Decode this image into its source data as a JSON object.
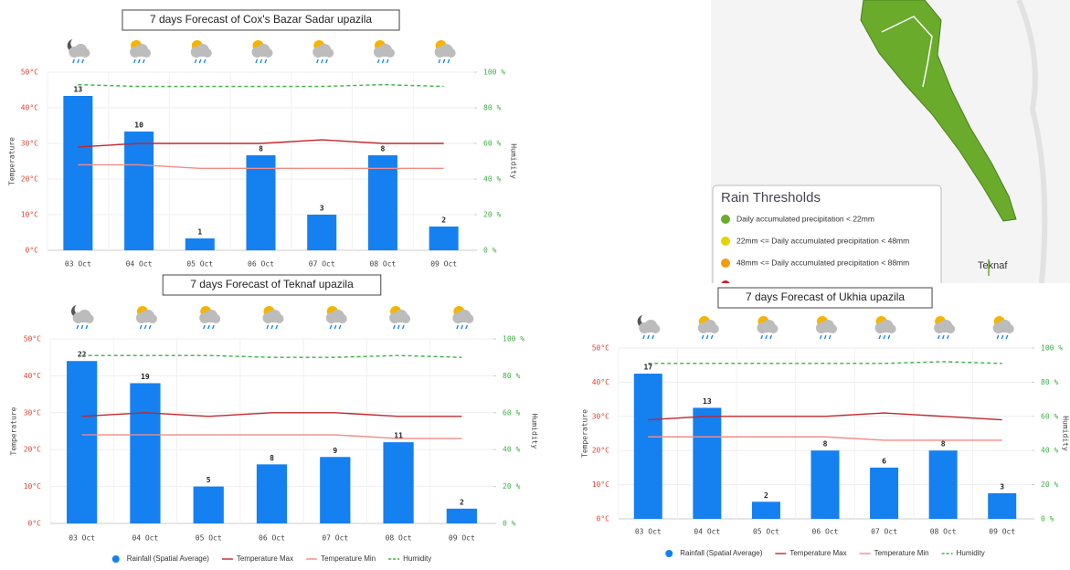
{
  "chart_data": [
    {
      "type": "bar",
      "title": "7 days Forecast of Cox's Bazar Sadar upazila",
      "categories": [
        "03 Oct",
        "04 Oct",
        "05 Oct",
        "06 Oct",
        "07 Oct",
        "08 Oct",
        "09 Oct"
      ],
      "ylabel": "Temperature",
      "y2label": "Humidity",
      "ylim": [
        0,
        50
      ],
      "yticks": [
        {
          "value": 0,
          "label": "0°C"
        },
        {
          "value": 10,
          "label": "10°C"
        },
        {
          "value": 20,
          "label": "20°C"
        },
        {
          "value": 30,
          "label": "30°C"
        },
        {
          "value": 40,
          "label": "40°C"
        },
        {
          "value": 50,
          "label": "50°C"
        }
      ],
      "y2lim": [
        0,
        100
      ],
      "y2ticks": [
        {
          "value": 0,
          "label": "0 %"
        },
        {
          "value": 20,
          "label": "20 %"
        },
        {
          "value": 40,
          "label": "40 %"
        },
        {
          "value": 60,
          "label": "60 %"
        },
        {
          "value": 80,
          "label": "80 %"
        },
        {
          "value": 100,
          "label": "100 %"
        }
      ],
      "y3lim": [
        0,
        15
      ],
      "legend": false,
      "series": [
        {
          "type": "bar",
          "axis": "y3",
          "color": "#1580f0",
          "values": [
            13,
            10,
            1,
            8,
            3,
            8,
            2
          ]
        },
        {
          "type": "line",
          "axis": "y",
          "color": "#c0282d",
          "values": [
            29,
            30,
            30,
            30,
            31,
            30,
            30
          ]
        },
        {
          "type": "line",
          "axis": "y",
          "color": "#f28b86",
          "values": [
            24,
            24,
            23,
            23,
            23,
            23,
            23
          ]
        },
        {
          "type": "line",
          "axis": "y2",
          "color": "#3cb043",
          "dash": true,
          "values": [
            93,
            92,
            92,
            92,
            92,
            93,
            92
          ]
        }
      ]
    },
    {
      "type": "bar",
      "title": "7 days Forecast of Teknaf upazila",
      "categories": [
        "03 Oct",
        "04 Oct",
        "05 Oct",
        "06 Oct",
        "07 Oct",
        "08 Oct",
        "09 Oct"
      ],
      "ylabel": "Temperature",
      "y2label": "Humidity",
      "ylim": [
        0,
        50
      ],
      "yticks": [
        {
          "value": 0,
          "label": "0°C"
        },
        {
          "value": 10,
          "label": "10°C"
        },
        {
          "value": 20,
          "label": "20°C"
        },
        {
          "value": 30,
          "label": "30°C"
        },
        {
          "value": 40,
          "label": "40°C"
        },
        {
          "value": 50,
          "label": "50°C"
        }
      ],
      "y2lim": [
        0,
        100
      ],
      "y2ticks": [
        {
          "value": 0,
          "label": "0 %"
        },
        {
          "value": 20,
          "label": "20 %"
        },
        {
          "value": 40,
          "label": "40 %"
        },
        {
          "value": 60,
          "label": "60 %"
        },
        {
          "value": 80,
          "label": "80 %"
        },
        {
          "value": 100,
          "label": "100 %"
        }
      ],
      "y3lim": [
        0,
        25
      ],
      "legend": true,
      "series": [
        {
          "type": "bar",
          "axis": "y3",
          "name": "Rainfall (Spatial Average)",
          "color": "#1580f0",
          "values": [
            22,
            19,
            5,
            8,
            9,
            11,
            2
          ]
        },
        {
          "type": "line",
          "axis": "y",
          "name": "Temperature Max",
          "color": "#c0282d",
          "values": [
            29,
            30,
            29,
            30,
            30,
            29,
            29
          ]
        },
        {
          "type": "line",
          "axis": "y",
          "name": "Temperature Min",
          "color": "#f28b86",
          "values": [
            24,
            24,
            24,
            24,
            24,
            23,
            23
          ]
        },
        {
          "type": "line",
          "axis": "y2",
          "name": "Humidity",
          "color": "#3cb043",
          "dash": true,
          "values": [
            91,
            91,
            91,
            90,
            90,
            91,
            90
          ]
        }
      ]
    },
    {
      "type": "bar",
      "title": "7 days Forecast of Ukhia upazila",
      "categories": [
        "03 Oct",
        "04 Oct",
        "05 Oct",
        "06 Oct",
        "07 Oct",
        "08 Oct",
        "09 Oct"
      ],
      "ylabel": "Temperature",
      "y2label": "Humidity",
      "ylim": [
        0,
        50
      ],
      "yticks": [
        {
          "value": 0,
          "label": "0°C"
        },
        {
          "value": 10,
          "label": "10°C"
        },
        {
          "value": 20,
          "label": "20°C"
        },
        {
          "value": 30,
          "label": "30°C"
        },
        {
          "value": 40,
          "label": "40°C"
        },
        {
          "value": 50,
          "label": "50°C"
        }
      ],
      "y2lim": [
        0,
        100
      ],
      "y2ticks": [
        {
          "value": 0,
          "label": "0 %"
        },
        {
          "value": 20,
          "label": "20 %"
        },
        {
          "value": 40,
          "label": "40 %"
        },
        {
          "value": 60,
          "label": "60 %"
        },
        {
          "value": 80,
          "label": "80 %"
        },
        {
          "value": 100,
          "label": "100 %"
        }
      ],
      "y3lim": [
        0,
        20
      ],
      "legend": true,
      "series": [
        {
          "type": "bar",
          "axis": "y3",
          "name": "Rainfall (Spatial Average)",
          "color": "#1580f0",
          "values": [
            17,
            13,
            2,
            8,
            6,
            8,
            3
          ]
        },
        {
          "type": "line",
          "axis": "y",
          "name": "Temperature Max",
          "color": "#c0282d",
          "values": [
            29,
            30,
            30,
            30,
            31,
            30,
            29
          ]
        },
        {
          "type": "line",
          "axis": "y",
          "name": "Temperature Min",
          "color": "#f28b86",
          "values": [
            24,
            24,
            24,
            24,
            23,
            23,
            23
          ]
        },
        {
          "type": "line",
          "axis": "y2",
          "name": "Humidity",
          "color": "#3cb043",
          "dash": true,
          "values": [
            91,
            91,
            91,
            91,
            91,
            92,
            91
          ]
        }
      ]
    }
  ],
  "map": {
    "legend_title": "Rain Thresholds",
    "place_label": "Teknaf",
    "thresholds": [
      {
        "label": "Daily accumulated precipitation < 22mm",
        "color": "#6aab2c"
      },
      {
        "label": "22mm <= Daily accumulated precipitation < 48mm",
        "color": "#e6d200"
      },
      {
        "label": "48mm <= Daily accumulated precipitation < 88mm",
        "color": "#f39c12"
      },
      {
        "color": "#c0282d"
      }
    ]
  }
}
